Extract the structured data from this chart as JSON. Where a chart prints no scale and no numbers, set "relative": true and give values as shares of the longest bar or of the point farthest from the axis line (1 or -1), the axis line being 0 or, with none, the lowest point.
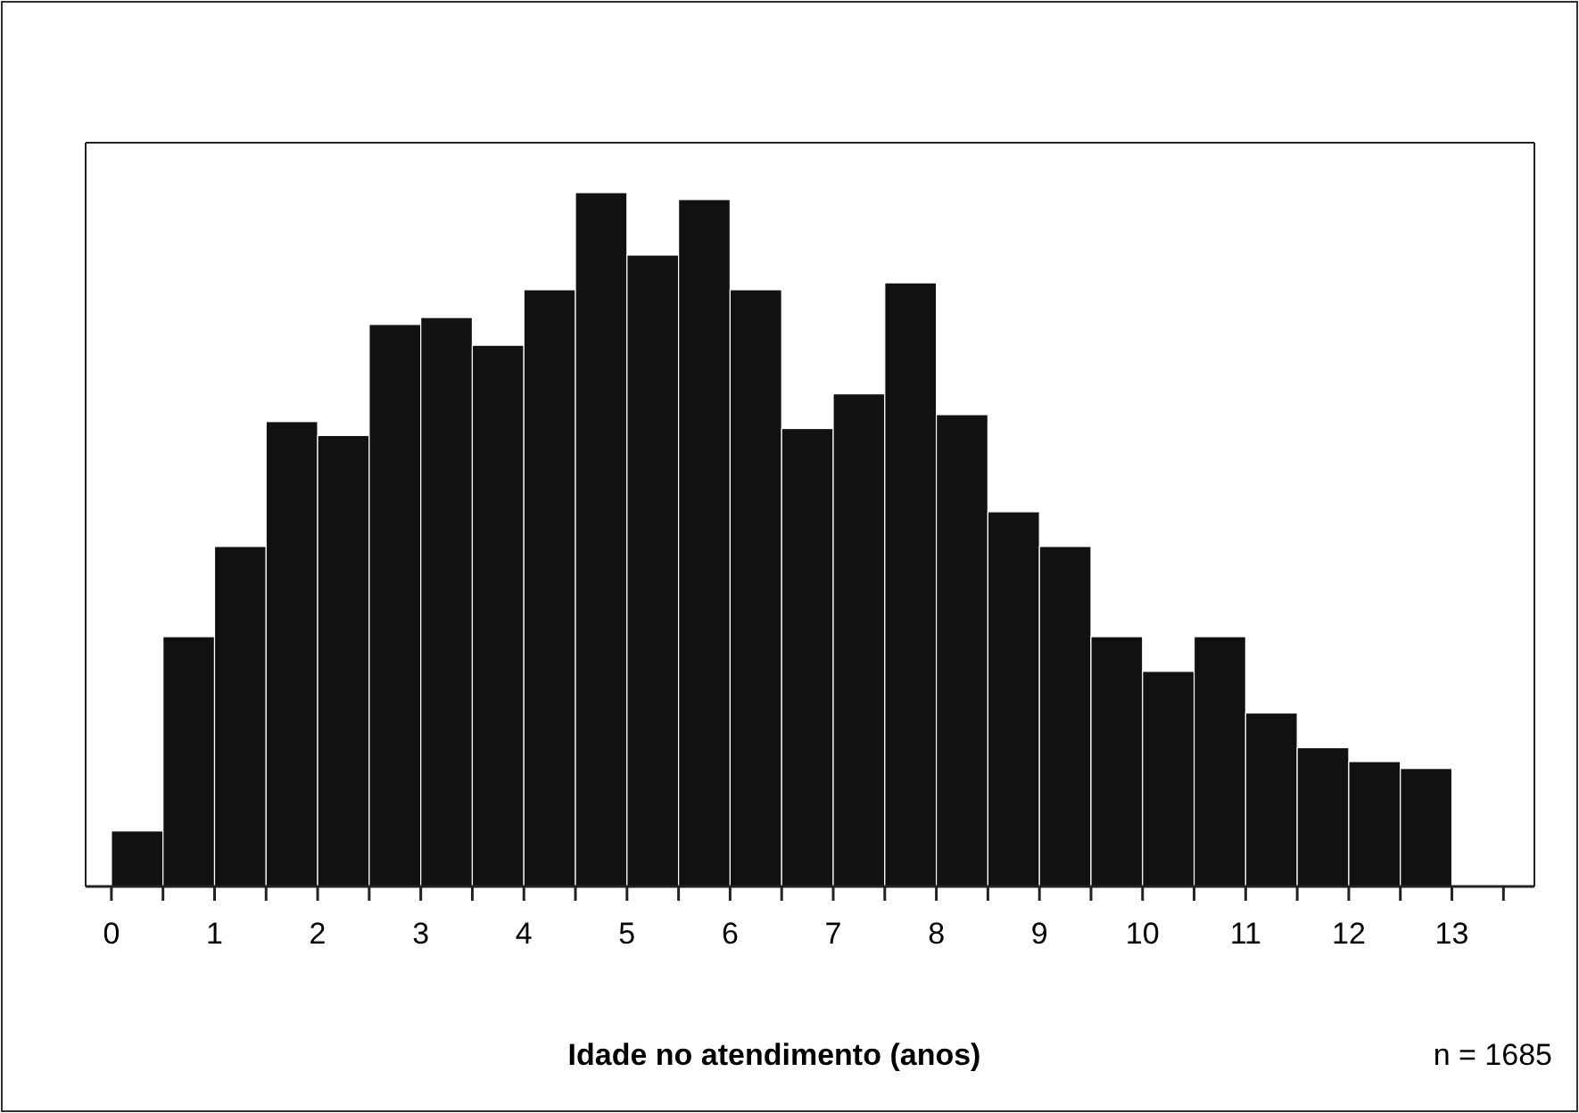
{
  "chart_data": {
    "type": "bar",
    "xlabel": "Idade no atendimento (anos)",
    "annotations": [
      "n = 1685"
    ],
    "relative": true,
    "color": "#111111",
    "x": [
      0.25,
      0.75,
      1.25,
      1.75,
      2.25,
      2.75,
      3.25,
      3.75,
      4.25,
      4.75,
      5.25,
      5.75,
      6.25,
      6.75,
      7.25,
      7.75,
      8.25,
      8.75,
      9.25,
      9.75,
      10.25,
      10.75,
      11.25,
      11.75,
      12.25,
      12.75
    ],
    "values": [
      0.08,
      0.36,
      0.49,
      0.67,
      0.65,
      0.81,
      0.82,
      0.78,
      0.86,
      1,
      0.91,
      0.99,
      0.86,
      0.66,
      0.71,
      0.87,
      0.68,
      0.54,
      0.49,
      0.36,
      0.31,
      0.36,
      0.25,
      0.2,
      0.18,
      0.17
    ],
    "xlim": [
      -0.25,
      13.8
    ],
    "xticks": [
      0,
      {
        "value": 0.5,
        "label": null
      },
      1,
      {
        "value": 1.5,
        "label": null
      },
      2,
      {
        "value": 2.5,
        "label": null
      },
      3,
      {
        "value": 3.5,
        "label": null
      },
      4,
      {
        "value": 4.5,
        "label": null
      },
      5,
      {
        "value": 5.5,
        "label": null
      },
      6,
      {
        "value": 6.5,
        "label": null
      },
      7,
      {
        "value": 7.5,
        "label": null
      },
      8,
      {
        "value": 8.5,
        "label": null
      },
      9,
      {
        "value": 9.5,
        "label": null
      },
      10,
      {
        "value": 10.5,
        "label": null
      },
      11,
      {
        "value": 11.5,
        "label": null
      },
      12,
      {
        "value": 12.5,
        "label": null
      },
      13,
      {
        "value": 13.5,
        "label": null
      }
    ]
  }
}
